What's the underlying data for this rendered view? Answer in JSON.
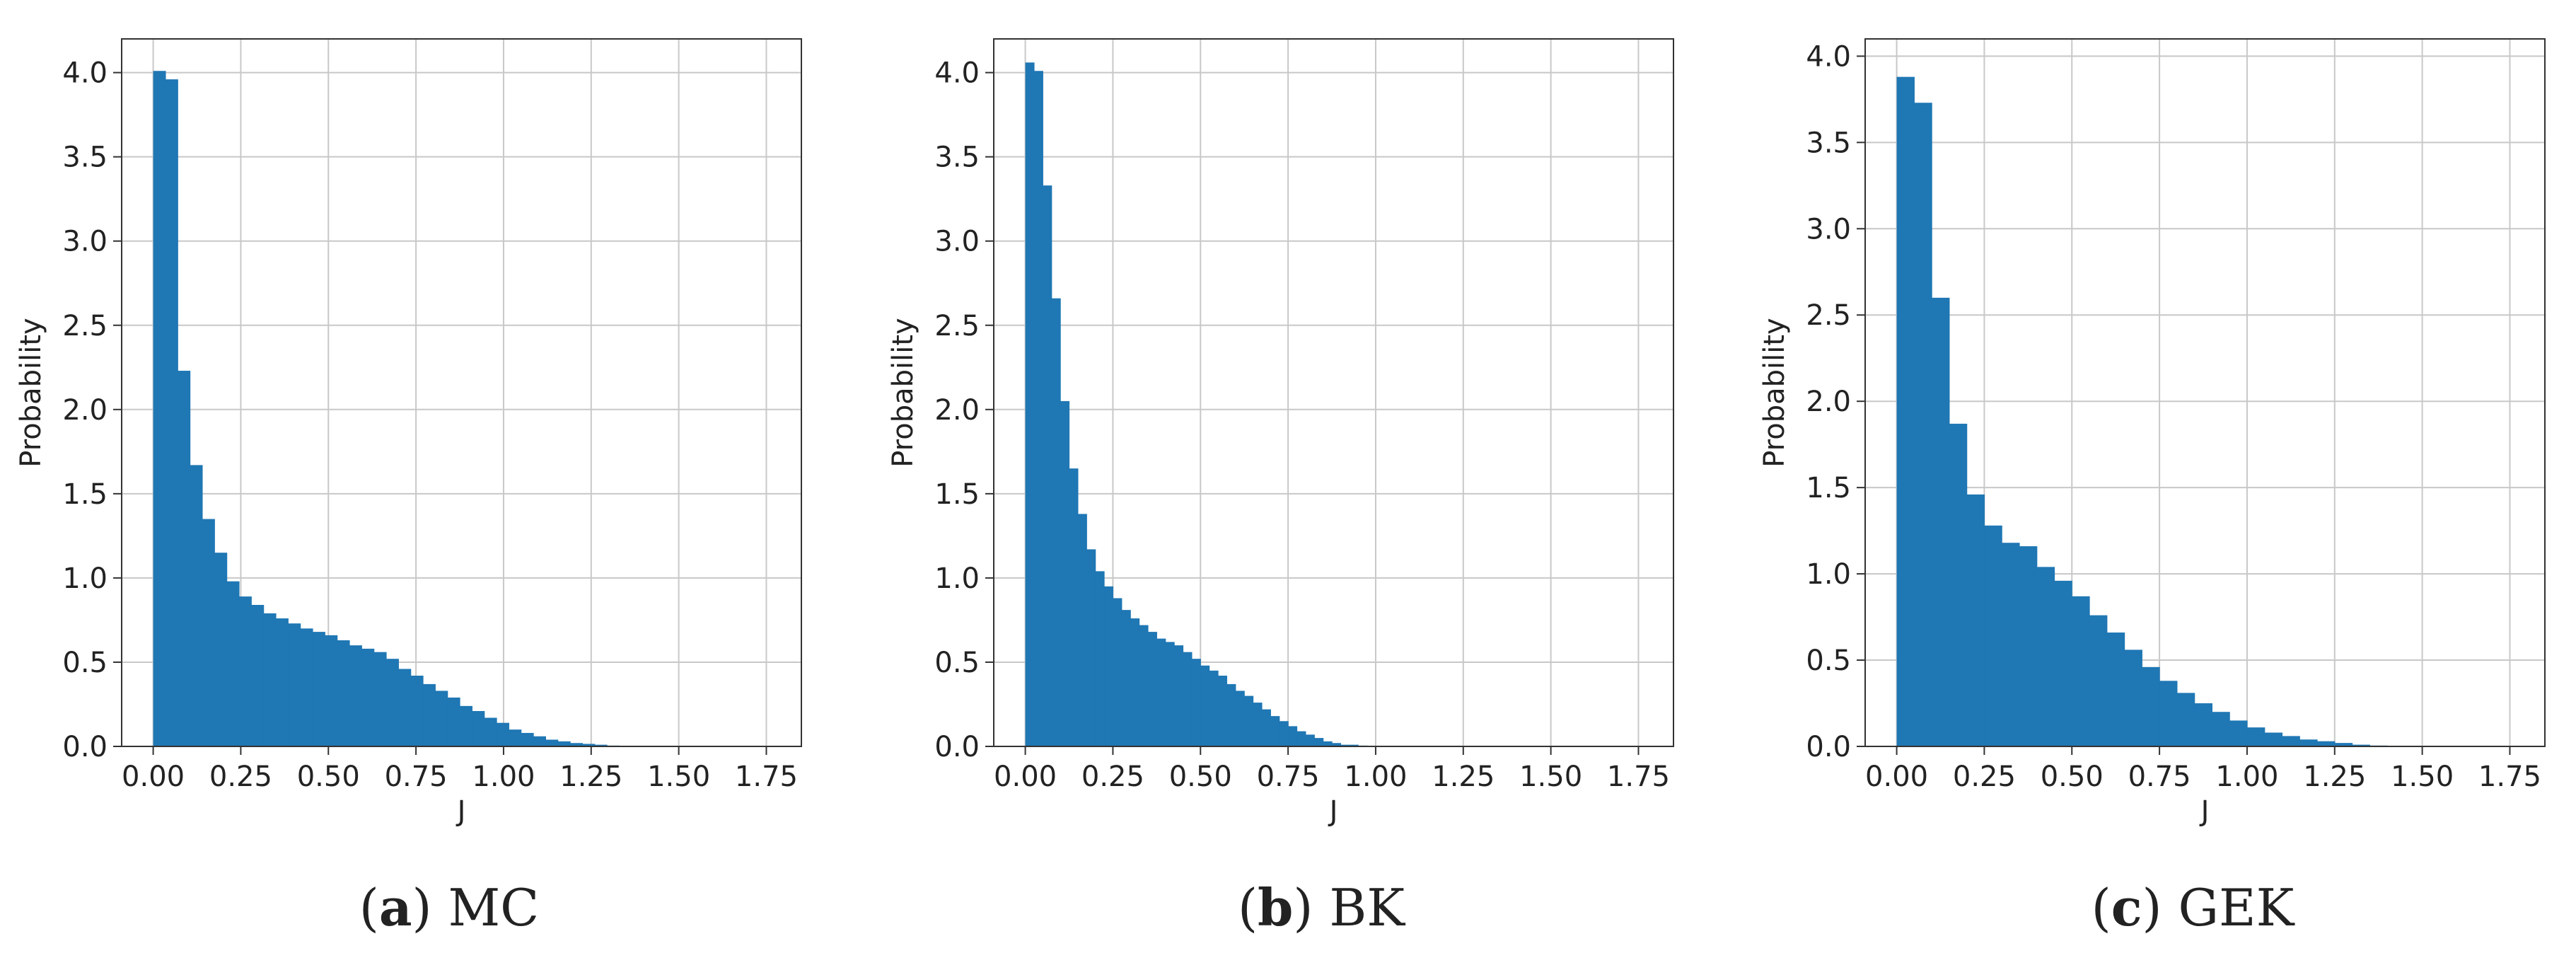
{
  "chart_data": [
    {
      "type": "bar",
      "panel": "a",
      "caption_letter": "a",
      "caption_text": "MC",
      "xlabel": "J",
      "ylabel": "Probability",
      "xlim": [
        -0.09,
        1.85
      ],
      "ylim": [
        0,
        4.2
      ],
      "xticks": [
        "0.00",
        "0.25",
        "0.50",
        "0.75",
        "1.00",
        "1.25",
        "1.50",
        "1.75"
      ],
      "yticks": [
        "0.0",
        "0.5",
        "1.0",
        "1.5",
        "2.0",
        "2.5",
        "3.0",
        "3.5",
        "4.0"
      ],
      "grid": true,
      "bin_start": 0.0,
      "bin_width": 0.035,
      "values": [
        4.01,
        3.96,
        2.23,
        1.67,
        1.35,
        1.15,
        0.98,
        0.89,
        0.84,
        0.79,
        0.76,
        0.73,
        0.7,
        0.68,
        0.66,
        0.63,
        0.6,
        0.58,
        0.56,
        0.52,
        0.46,
        0.42,
        0.37,
        0.33,
        0.29,
        0.24,
        0.21,
        0.17,
        0.14,
        0.1,
        0.08,
        0.06,
        0.04,
        0.03,
        0.02,
        0.015,
        0.01,
        0.005,
        0.004,
        0.003,
        0.002,
        0.002,
        0.001,
        0.001,
        0.001,
        0.001,
        0.0,
        0.0,
        0.0,
        0.0
      ]
    },
    {
      "type": "bar",
      "panel": "b",
      "caption_letter": "b",
      "caption_text": "BK",
      "xlabel": "J",
      "ylabel": "Probability",
      "xlim": [
        -0.09,
        1.85
      ],
      "ylim": [
        0,
        4.2
      ],
      "xticks": [
        "0.00",
        "0.25",
        "0.50",
        "0.75",
        "1.00",
        "1.25",
        "1.50",
        "1.75"
      ],
      "yticks": [
        "0.0",
        "0.5",
        "1.0",
        "1.5",
        "2.0",
        "2.5",
        "3.0",
        "3.5",
        "4.0"
      ],
      "grid": true,
      "bin_start": 0.0,
      "bin_width": 0.025,
      "values": [
        4.06,
        4.01,
        3.33,
        2.66,
        2.05,
        1.65,
        1.38,
        1.17,
        1.04,
        0.95,
        0.88,
        0.81,
        0.76,
        0.72,
        0.68,
        0.64,
        0.62,
        0.6,
        0.56,
        0.52,
        0.48,
        0.45,
        0.42,
        0.37,
        0.33,
        0.3,
        0.26,
        0.22,
        0.18,
        0.15,
        0.12,
        0.09,
        0.07,
        0.05,
        0.03,
        0.02,
        0.01,
        0.01,
        0.005,
        0.003,
        0.002,
        0.001,
        0.001,
        0.0,
        0.0,
        0.0,
        0.0,
        0.0,
        0.0,
        0.0,
        0.0,
        0.0,
        0.0,
        0.0,
        0.0,
        0.0,
        0.0,
        0.0,
        0.0,
        0.0,
        0.0,
        0.0,
        0.0,
        0.0,
        0.0,
        0.0,
        0.0,
        0.0,
        0.0,
        0.0
      ]
    },
    {
      "type": "bar",
      "panel": "c",
      "caption_letter": "c",
      "caption_text": "GEK",
      "xlabel": "J",
      "ylabel": "Probability",
      "xlim": [
        -0.09,
        1.85
      ],
      "ylim": [
        0,
        4.1
      ],
      "xticks": [
        "0.00",
        "0.25",
        "0.50",
        "0.75",
        "1.00",
        "1.25",
        "1.50",
        "1.75"
      ],
      "yticks": [
        "0.0",
        "0.5",
        "1.0",
        "1.5",
        "2.0",
        "2.5",
        "3.0",
        "3.5",
        "4.0"
      ],
      "grid": true,
      "bin_start": 0.0,
      "bin_width": 0.05,
      "values": [
        3.88,
        3.73,
        2.6,
        1.87,
        1.46,
        1.28,
        1.18,
        1.16,
        1.04,
        0.96,
        0.87,
        0.76,
        0.66,
        0.56,
        0.46,
        0.38,
        0.31,
        0.25,
        0.2,
        0.15,
        0.11,
        0.08,
        0.06,
        0.04,
        0.03,
        0.02,
        0.01,
        0.005,
        0.003,
        0.002,
        0.001,
        0.001,
        0.001,
        0.0,
        0.0,
        0.0
      ]
    }
  ],
  "colors": {
    "bar": "#1f77b4",
    "grid": "#c8c8c8",
    "axis": "#333333",
    "text": "#222222"
  }
}
